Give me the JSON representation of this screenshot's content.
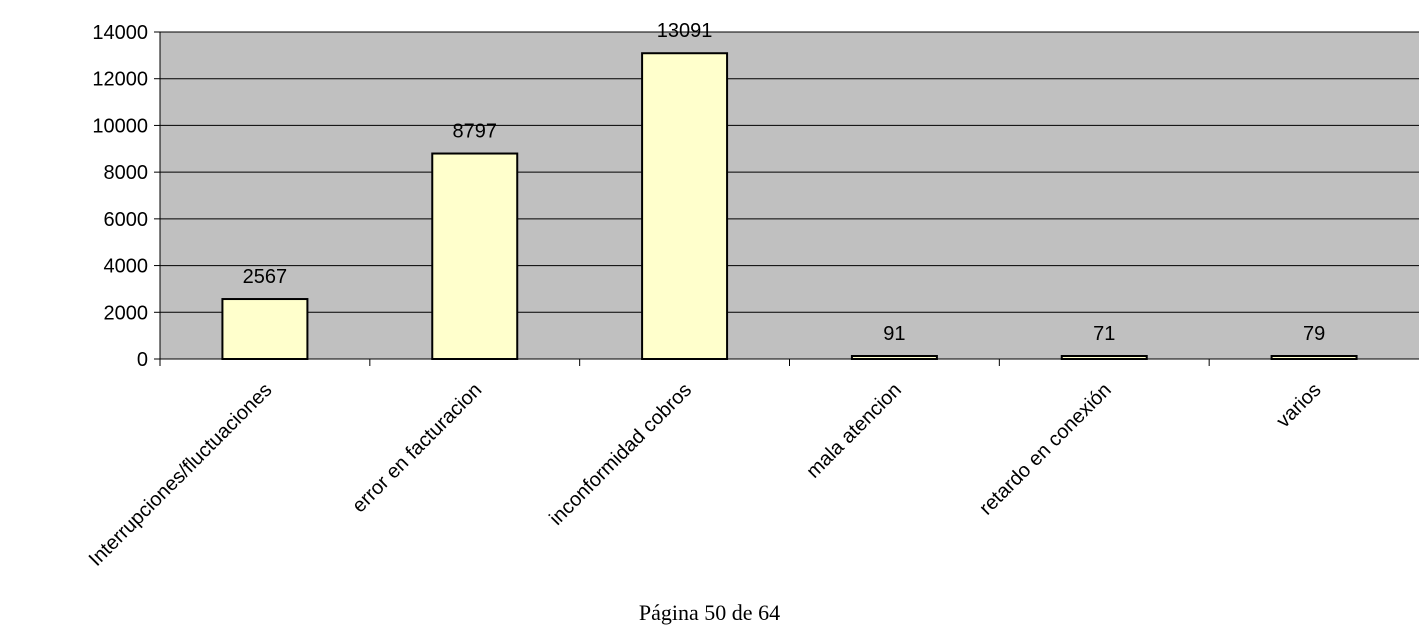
{
  "chart_data": {
    "type": "bar",
    "categories": [
      "Interrupciones/fluctuaciones",
      "error en facturacion",
      "inconformidad cobros",
      "mala atencion",
      "retardo en conexión",
      "varios"
    ],
    "values": [
      2567,
      8797,
      13091,
      91,
      71,
      79
    ],
    "data_labels": [
      "2567",
      "8797",
      "13091",
      "91",
      "71",
      "79"
    ],
    "ylim": [
      0,
      14000
    ],
    "yticks": [
      0,
      2000,
      4000,
      6000,
      8000,
      10000,
      12000,
      14000
    ],
    "ytick_labels": [
      "0",
      "2000",
      "4000",
      "6000",
      "8000",
      "10000",
      "12000",
      "14000"
    ],
    "title": "",
    "xlabel": "",
    "ylabel": "",
    "grid": true,
    "legend": false,
    "colors": {
      "plot_background": "#c0c0c0",
      "bar_fill": "#ffffcc",
      "bar_stroke": "#000000",
      "gridline": "#000000"
    }
  },
  "footer": {
    "page_label": "Página 50 de 64"
  }
}
